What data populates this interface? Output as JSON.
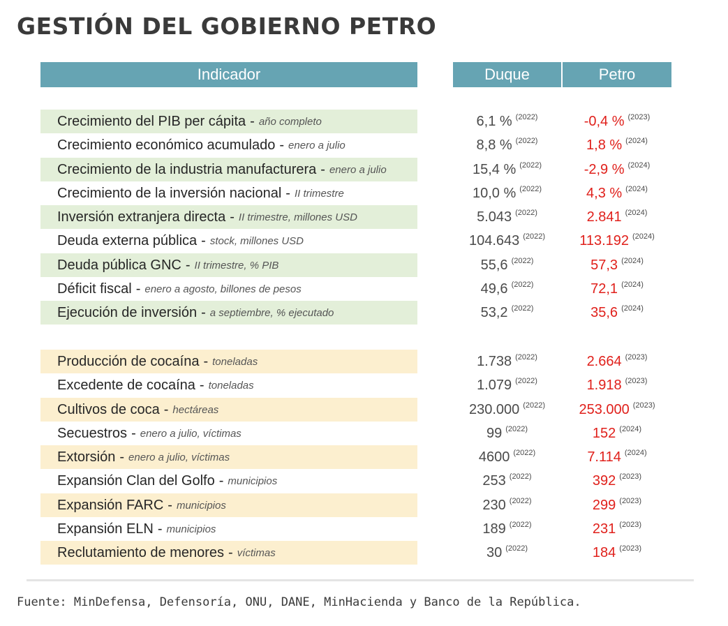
{
  "title": "GESTIÓN DEL GOBIERNO PETRO",
  "headers": {
    "indicator": "Indicador",
    "duque": "Duque",
    "petro": "Petro"
  },
  "colors": {
    "header_bg": "#66a4b3",
    "economy_band": "#e3efd9",
    "security_band": "#fcefcf",
    "petro_value": "#e0201b"
  },
  "economy": [
    {
      "label": "Crecimiento del PIB per cápita",
      "note": "año completo",
      "duque": "6,1 %",
      "duque_year": "(2022)",
      "petro": "-0,4 %",
      "petro_year": "(2023)"
    },
    {
      "label": "Crecimiento económico acumulado",
      "note": "enero a julio",
      "duque": "8,8 %",
      "duque_year": "(2022)",
      "petro": "1,8 %",
      "petro_year": "(2024)"
    },
    {
      "label": "Crecimiento de la industria manufacturera",
      "note": "enero a julio",
      "duque": "15,4 %",
      "duque_year": "(2022)",
      "petro": "-2,9 %",
      "petro_year": "(2024)"
    },
    {
      "label": "Crecimiento de la inversión nacional",
      "note": "II trimestre",
      "duque": "10,0 %",
      "duque_year": "(2022)",
      "petro": "4,3 %",
      "petro_year": "(2024)"
    },
    {
      "label": "Inversión extranjera directa",
      "note": "II trimestre, millones USD",
      "duque": "5.043",
      "duque_year": "(2022)",
      "petro": "2.841",
      "petro_year": "(2024)"
    },
    {
      "label": "Deuda externa pública",
      "note": "stock, millones USD",
      "duque": "104.643",
      "duque_year": "(2022)",
      "petro": "113.192",
      "petro_year": "(2024)"
    },
    {
      "label": "Deuda pública GNC",
      "note": "II trimestre, % PIB",
      "duque": "55,6",
      "duque_year": "(2022)",
      "petro": "57,3",
      "petro_year": "(2024)"
    },
    {
      "label": "Déficit fiscal",
      "note": "enero a agosto, billones de pesos",
      "duque": "49,6",
      "duque_year": "(2022)",
      "petro": "72,1",
      "petro_year": "(2024)"
    },
    {
      "label": "Ejecución de inversión",
      "note": "a septiembre, % ejecutado",
      "duque": "53,2",
      "duque_year": "(2022)",
      "petro": "35,6",
      "petro_year": "(2024)"
    }
  ],
  "security": [
    {
      "label": "Producción de cocaína",
      "note": "toneladas",
      "duque": "1.738",
      "duque_year": "(2022)",
      "petro": "2.664",
      "petro_year": "(2023)"
    },
    {
      "label": "Excedente de cocaína",
      "note": "toneladas",
      "duque": "1.079",
      "duque_year": "(2022)",
      "petro": "1.918",
      "petro_year": "(2023)"
    },
    {
      "label": "Cultivos de coca",
      "note": "hectáreas",
      "duque": "230.000",
      "duque_year": "(2022)",
      "petro": "253.000",
      "petro_year": "(2023)"
    },
    {
      "label": "Secuestros",
      "note": "enero a julio, víctimas",
      "duque": "99",
      "duque_year": "(2022)",
      "petro": "152",
      "petro_year": "(2024)"
    },
    {
      "label": "Extorsión",
      "note": "enero a julio, víctimas",
      "duque": "4600",
      "duque_year": "(2022)",
      "petro": "7.114",
      "petro_year": "(2024)"
    },
    {
      "label": "Expansión Clan del Golfo",
      "note": "municipios",
      "duque": "253",
      "duque_year": "(2022)",
      "petro": "392",
      "petro_year": "(2023)"
    },
    {
      "label": "Expansión FARC",
      "note": "municipios",
      "duque": "230",
      "duque_year": "(2022)",
      "petro": "299",
      "petro_year": "(2023)"
    },
    {
      "label": "Expansión ELN",
      "note": "municipios",
      "duque": "189",
      "duque_year": "(2022)",
      "petro": "231",
      "petro_year": "(2023)"
    },
    {
      "label": "Reclutamiento de menores",
      "note": "víctimas",
      "duque": "30",
      "duque_year": "(2022)",
      "petro": "184",
      "petro_year": "(2023)"
    }
  ],
  "separator": "-",
  "source": "Fuente: MinDefensa, Defensoría, ONU, DANE, MinHacienda y Banco de la República."
}
